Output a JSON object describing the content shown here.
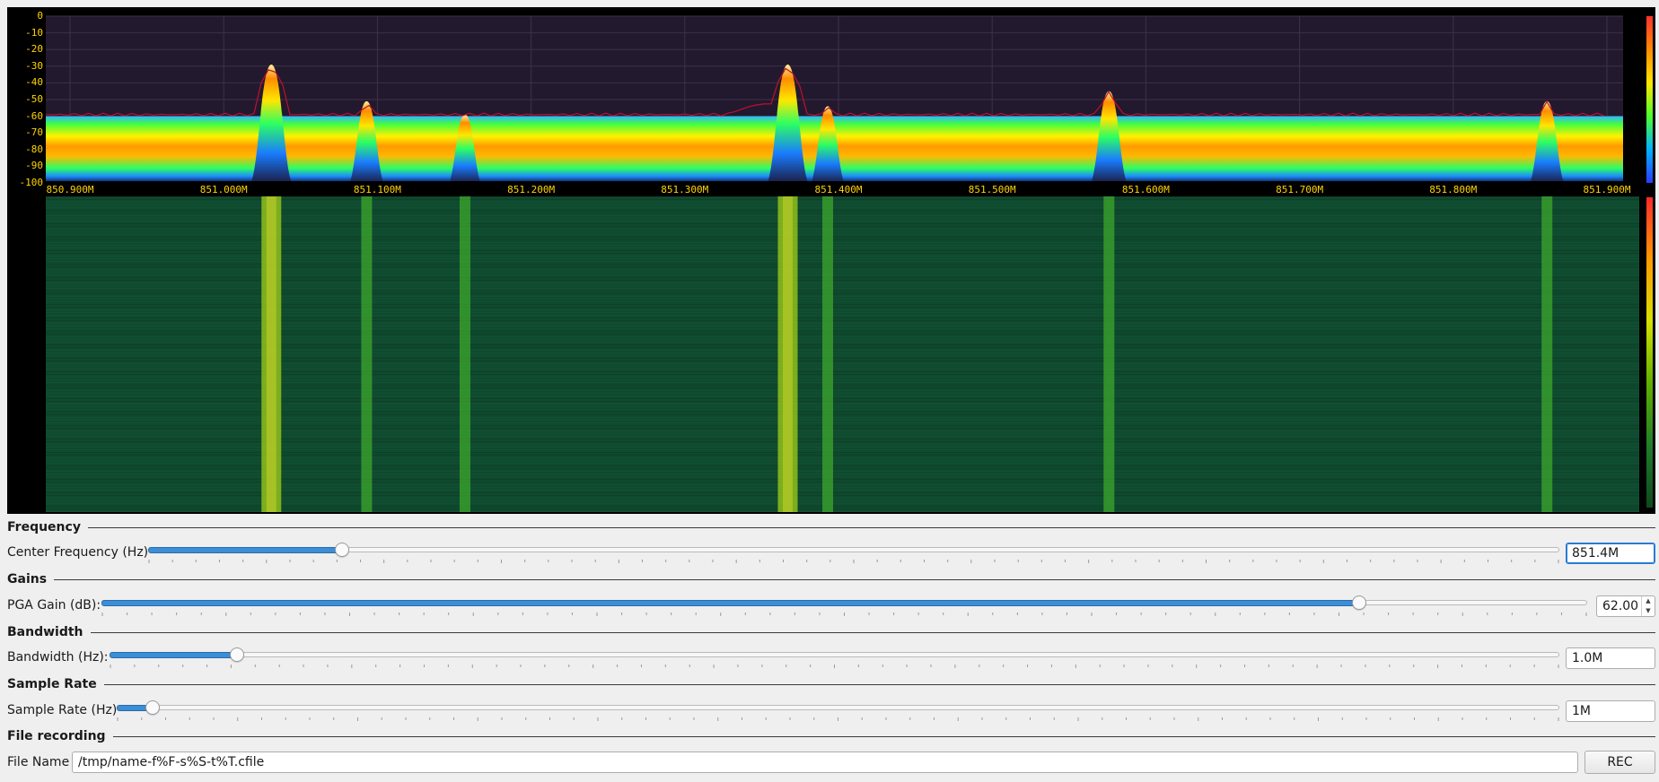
{
  "spectrum": {
    "y_ticks": [
      "0",
      "-10",
      "-20",
      "-30",
      "-40",
      "-50",
      "-60",
      "-70",
      "-80",
      "-90",
      "-100"
    ],
    "x_ticks": [
      "850.900M",
      "851.000M",
      "851.100M",
      "851.200M",
      "851.300M",
      "851.400M",
      "851.500M",
      "851.600M",
      "851.700M",
      "851.800M",
      "851.900M"
    ],
    "colors": {
      "background": "#000000",
      "label": "#ffd400",
      "hold_trace": "#c0102a"
    }
  },
  "chart_data": {
    "type": "line",
    "x_unit": "MHz",
    "xlim": [
      850.9,
      851.9
    ],
    "ylim": [
      -100,
      0
    ],
    "noise_floor_db": -72,
    "peaks": [
      {
        "x": 851.031,
        "y": -29
      },
      {
        "x": 851.093,
        "y": -51
      },
      {
        "x": 851.157,
        "y": -59
      },
      {
        "x": 851.367,
        "y": -29
      },
      {
        "x": 851.393,
        "y": -54
      },
      {
        "x": 851.576,
        "y": -45
      },
      {
        "x": 851.861,
        "y": -51
      }
    ]
  },
  "controls": {
    "frequency": {
      "group": "Frequency",
      "label": "Center Frequency (Hz)",
      "value": "851.4M",
      "slider_fraction": 0.137
    },
    "gains": {
      "group": "Gains",
      "label": "PGA Gain (dB):",
      "value": "62.00",
      "slider_fraction": 0.846
    },
    "bandwidth": {
      "group": "Bandwidth",
      "label": "Bandwidth (Hz):",
      "value": "1.0M",
      "slider_fraction": 0.087
    },
    "sample_rate": {
      "group": "Sample Rate",
      "label": "Sample Rate (Hz)",
      "value": "1M",
      "slider_fraction": 0.024
    },
    "recording": {
      "group": "File recording",
      "label": "File Name",
      "value": "/tmp/name-f%F-s%S-t%T.cfile",
      "button": "REC"
    }
  }
}
